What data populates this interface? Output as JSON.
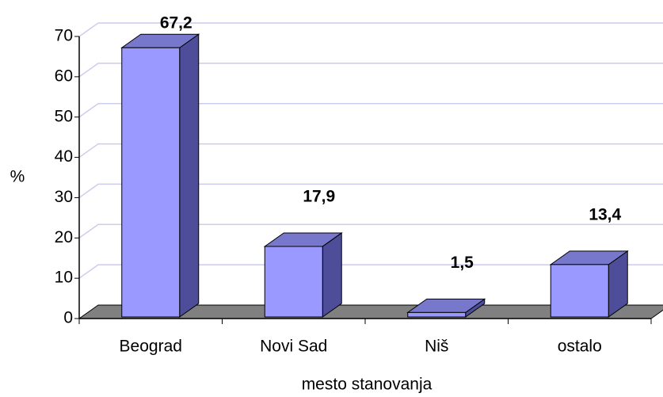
{
  "chart_data": {
    "type": "bar3d",
    "categories": [
      "Beograd",
      "Novi Sad",
      "Niš",
      "ostalo"
    ],
    "values": [
      67.2,
      17.9,
      1.5,
      13.4
    ],
    "value_labels": [
      "67,2",
      "17,9",
      "1,5",
      "13,4"
    ],
    "color": "#9999ff",
    "y_label": "%",
    "x_label": "mesto stanovanja",
    "ylim": [
      0,
      70
    ],
    "yticks": [
      0,
      10,
      20,
      30,
      40,
      50,
      60,
      70
    ],
    "grid": true
  }
}
